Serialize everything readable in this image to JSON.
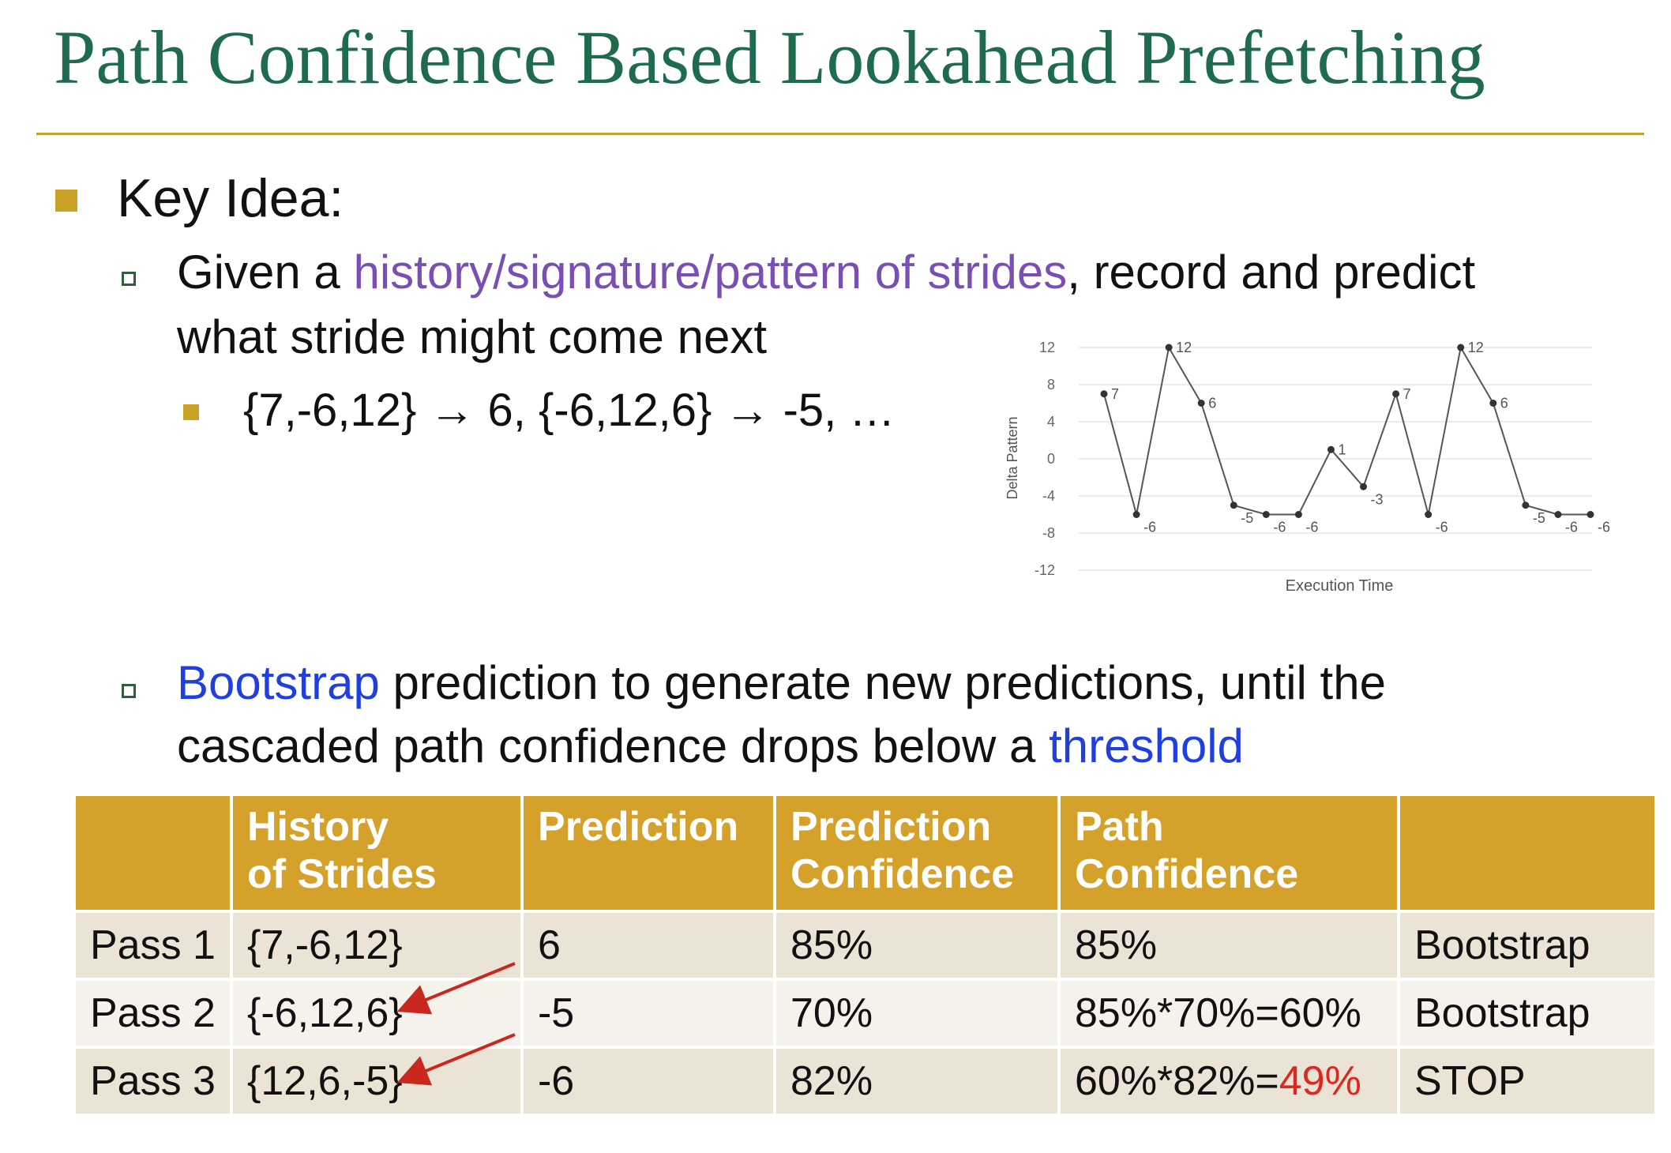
{
  "title": "Path Confidence Based Lookahead Prefetching",
  "key_idea": "Key Idea:",
  "bullet1": {
    "prefix": "Given a ",
    "highlight": "history/signature/pattern of strides",
    "suffix": ", record and predict",
    "line2": "what stride might come next"
  },
  "sub_bullet": "{7,-6,12} → 6, {-6,12,6} → -5, …",
  "bullet2": {
    "highlight1": "Bootstrap",
    "line1_rest": " prediction to generate new predictions, until the",
    "line2_prefix": "cascaded path confidence drops below a ",
    "highlight2": "threshold"
  },
  "colors": {
    "title": "#1e6b4e",
    "accent": "#c9a227",
    "purple": "#7a4fb5",
    "blue": "#1f3fe0",
    "red": "#e0271f",
    "table_header": "#d4a12a"
  },
  "table": {
    "headers": [
      "",
      "History of Strides",
      "Prediction",
      "Prediction Confidence",
      "Path Confidence",
      ""
    ],
    "rows": [
      {
        "pass": "Pass 1",
        "history": "{7,-6,12}",
        "prediction": "6",
        "pred_conf": "85%",
        "path_conf_main": "85%",
        "path_conf_red": "",
        "action": "Bootstrap",
        "action_red": false
      },
      {
        "pass": "Pass 2",
        "history": "{-6,12,6}",
        "prediction": "-5",
        "pred_conf": "70%",
        "path_conf_main": "85%*70%=60%",
        "path_conf_red": "",
        "action": "Bootstrap",
        "action_red": false
      },
      {
        "pass": "Pass 3",
        "history": "{12,6,-5}",
        "prediction": "-6",
        "pred_conf": "82%",
        "path_conf_main": "60%*82%=",
        "path_conf_red": "49%",
        "action": "STOP",
        "action_red": true
      }
    ]
  },
  "chart_data": {
    "type": "line",
    "xlabel": "Execution Time",
    "ylabel": "Delta Pattern",
    "ylim": [
      -12,
      12
    ],
    "yticks": [
      12,
      8,
      4,
      0,
      -4,
      -8,
      -12
    ],
    "grid": true,
    "series": [
      {
        "values": [
          7,
          -6,
          12,
          6,
          -5,
          -6,
          -6,
          1,
          -3,
          7,
          -6,
          12,
          6,
          -5,
          -6,
          -6
        ]
      }
    ],
    "point_labels": [
      "7",
      "-6",
      "12",
      "6",
      "-5",
      "-6",
      "-6",
      "1",
      "-3",
      "7",
      "-6",
      "12",
      "6",
      "-5",
      "-6",
      "-6"
    ]
  }
}
